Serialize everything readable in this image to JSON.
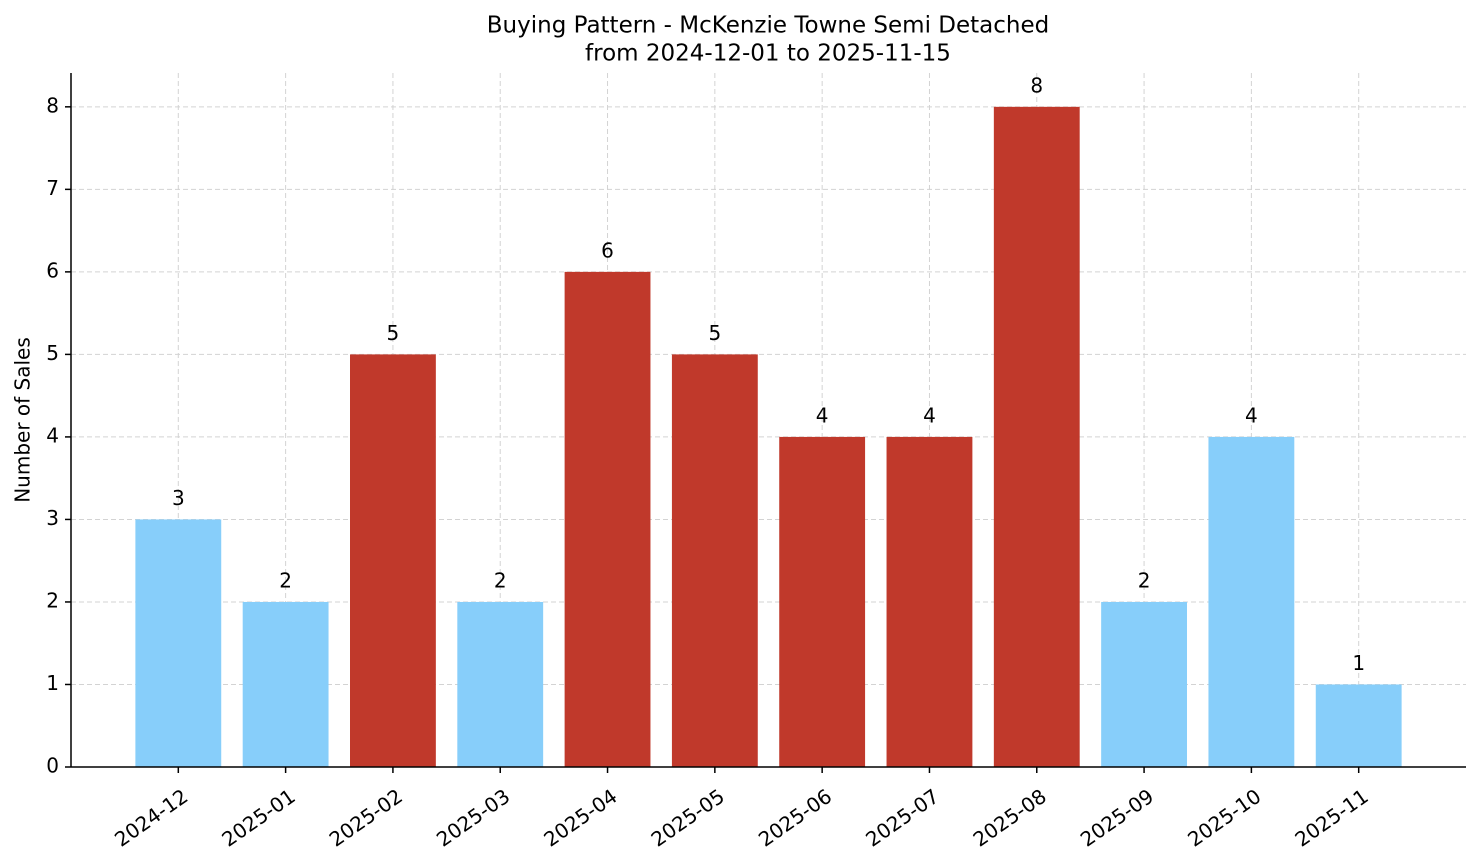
{
  "chart_data": {
    "type": "bar",
    "title": "Buying Pattern - McKenzie Towne Semi Detached",
    "subtitle": "from 2024-12-01 to 2025-11-15",
    "y_label": "Number of Sales",
    "categories": [
      "2024-12",
      "2025-01",
      "2025-02",
      "2025-03",
      "2025-04",
      "2025-05",
      "2025-06",
      "2025-07",
      "2025-08",
      "2025-09",
      "2025-10",
      "2025-11"
    ],
    "values": [
      3,
      2,
      5,
      2,
      6,
      5,
      4,
      4,
      8,
      2,
      4,
      1
    ],
    "colors": [
      "#87cefa",
      "#87cefa",
      "#c0392b",
      "#87cefa",
      "#c0392b",
      "#c0392b",
      "#c0392b",
      "#c0392b",
      "#c0392b",
      "#87cefa",
      "#87cefa",
      "#87cefa"
    ],
    "ylim": [
      0,
      8.41
    ],
    "yticks": [
      0,
      1,
      2,
      3,
      4,
      5,
      6,
      7,
      8
    ],
    "grid": true
  }
}
